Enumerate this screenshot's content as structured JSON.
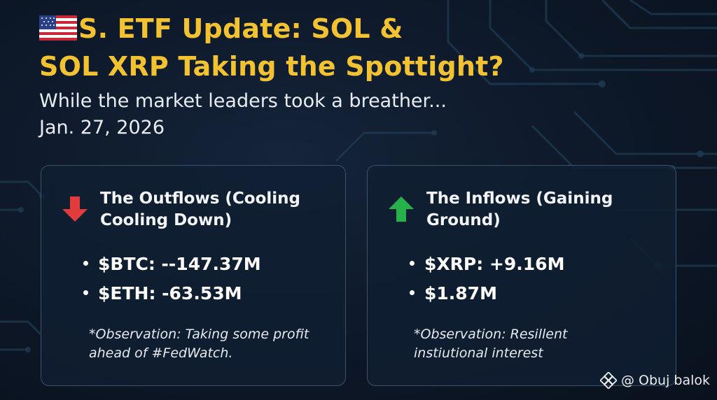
{
  "header": {
    "flag_icon": "us-flag-icon",
    "title_line1": "S. ETF Update: SOL &",
    "title_line2": "SOL XRP Taking the Spottight?",
    "subtitle": "While the market leaders took a breather...",
    "date": "Jan. 27, 2026"
  },
  "outflows": {
    "icon": "red-down-arrow-icon",
    "title_line1": "The Outflows (Cooling",
    "title_line2": "Cooling Down)",
    "items": [
      "$BTC: --147.37M",
      "$ETH: -63.53M"
    ],
    "observation_line1": "*Observation: Taking some profit",
    "observation_line2": "ahead of #FedWatch."
  },
  "inflows": {
    "icon": "green-up-arrow-icon",
    "title_line1": "The Inflows (Gaining",
    "title_line2": "Ground)",
    "items": [
      "$XRP: +9.16M",
      "$1.87M"
    ],
    "observation_line1": "*Observation: Resillent",
    "observation_line2": "instiutional interest"
  },
  "watermark": {
    "text": "@ Obuj balok",
    "icon": "binance-logo-icon"
  },
  "colors": {
    "title": "#f2c230",
    "down_arrow": "#e23b3b",
    "up_arrow": "#27b14a",
    "background": "#0d1828"
  }
}
